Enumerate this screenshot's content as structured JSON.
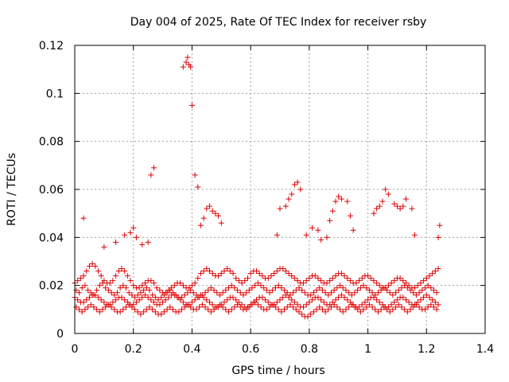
{
  "chart_data": {
    "type": "scatter",
    "title": "Day 004 of 2025, Rate Of TEC Index for receiver rsby",
    "xlabel": "GPS time / hours",
    "ylabel": "ROTI / TECUs",
    "xlim": [
      0,
      1.4
    ],
    "ylim": [
      0,
      0.12
    ],
    "xticks": [
      0,
      0.2,
      0.4,
      0.6,
      0.8,
      1,
      1.2,
      1.4
    ],
    "xtick_labels": [
      "0",
      "0.2",
      "0.4",
      "0.6",
      "0.8",
      "1",
      "1.2",
      "1.4"
    ],
    "yticks": [
      0,
      0.02,
      0.04,
      0.06,
      0.08,
      0.1,
      0.12
    ],
    "ytick_labels": [
      "0",
      "0.02",
      "0.04",
      "0.06",
      "0.08",
      "0.1",
      "0.12"
    ],
    "grid": true,
    "marker": "+",
    "marker_color": "#e00000",
    "series": [
      {
        "name": "ROTI",
        "x": [
          0.0,
          0.01,
          0.02,
          0.03,
          0.04,
          0.05,
          0.06,
          0.07,
          0.08,
          0.09,
          0.1,
          0.11,
          0.12,
          0.13,
          0.14,
          0.15,
          0.16,
          0.17,
          0.18,
          0.19,
          0.2,
          0.21,
          0.22,
          0.23,
          0.24,
          0.25,
          0.26,
          0.27,
          0.28,
          0.29,
          0.3,
          0.31,
          0.32,
          0.33,
          0.34,
          0.35,
          0.36,
          0.37,
          0.38,
          0.39,
          0.4,
          0.41,
          0.42,
          0.43,
          0.44,
          0.45,
          0.46,
          0.47,
          0.48,
          0.49,
          0.5,
          0.51,
          0.52,
          0.53,
          0.54,
          0.55,
          0.56,
          0.57,
          0.58,
          0.59,
          0.6,
          0.61,
          0.62,
          0.63,
          0.64,
          0.65,
          0.66,
          0.67,
          0.68,
          0.69,
          0.7,
          0.71,
          0.72,
          0.73,
          0.74,
          0.75,
          0.76,
          0.77,
          0.78,
          0.79,
          0.8,
          0.81,
          0.82,
          0.83,
          0.84,
          0.85,
          0.86,
          0.87,
          0.88,
          0.89,
          0.9,
          0.91,
          0.92,
          0.93,
          0.94,
          0.95,
          0.96,
          0.97,
          0.98,
          0.99,
          1.0,
          1.01,
          1.02,
          1.03,
          1.04,
          1.05,
          1.06,
          1.07,
          1.08,
          1.09,
          1.1,
          1.11,
          1.12,
          1.13,
          1.14,
          1.15,
          1.16,
          1.17,
          1.18,
          1.19,
          1.2,
          1.21,
          1.22,
          1.23,
          1.24,
          0.0,
          0.01,
          0.02,
          0.03,
          0.04,
          0.05,
          0.06,
          0.07,
          0.08,
          0.09,
          0.1,
          0.11,
          0.12,
          0.13,
          0.14,
          0.15,
          0.16,
          0.17,
          0.18,
          0.19,
          0.2,
          0.21,
          0.22,
          0.23,
          0.24,
          0.25,
          0.26,
          0.27,
          0.28,
          0.29,
          0.3,
          0.31,
          0.32,
          0.33,
          0.34,
          0.35,
          0.36,
          0.37,
          0.38,
          0.39,
          0.4,
          0.41,
          0.42,
          0.43,
          0.44,
          0.45,
          0.46,
          0.47,
          0.48,
          0.49,
          0.5,
          0.51,
          0.52,
          0.53,
          0.54,
          0.55,
          0.56,
          0.57,
          0.58,
          0.59,
          0.6,
          0.61,
          0.62,
          0.63,
          0.64,
          0.65,
          0.66,
          0.67,
          0.68,
          0.69,
          0.7,
          0.71,
          0.72,
          0.73,
          0.74,
          0.75,
          0.76,
          0.77,
          0.78,
          0.79,
          0.8,
          0.81,
          0.82,
          0.83,
          0.84,
          0.85,
          0.86,
          0.87,
          0.88,
          0.89,
          0.9,
          0.91,
          0.92,
          0.93,
          0.94,
          0.95,
          0.96,
          0.97,
          0.98,
          0.99,
          1.0,
          1.01,
          1.02,
          1.03,
          1.04,
          1.05,
          1.06,
          1.07,
          1.08,
          1.09,
          1.1,
          1.11,
          1.12,
          1.13,
          1.14,
          1.15,
          1.16,
          1.17,
          1.18,
          1.19,
          1.2,
          1.21,
          1.22,
          1.23,
          1.24,
          0.005,
          0.015,
          0.025,
          0.035,
          0.045,
          0.055,
          0.065,
          0.075,
          0.085,
          0.095,
          0.105,
          0.115,
          0.125,
          0.135,
          0.145,
          0.155,
          0.165,
          0.175,
          0.185,
          0.195,
          0.205,
          0.215,
          0.225,
          0.235,
          0.245,
          0.255,
          0.265,
          0.275,
          0.285,
          0.295,
          0.305,
          0.315,
          0.325,
          0.335,
          0.345,
          0.355,
          0.365,
          0.375,
          0.385,
          0.395,
          0.405,
          0.415,
          0.425,
          0.435,
          0.445,
          0.455,
          0.465,
          0.475,
          0.485,
          0.495,
          0.505,
          0.515,
          0.525,
          0.535,
          0.545,
          0.555,
          0.565,
          0.575,
          0.585,
          0.595,
          0.605,
          0.615,
          0.625,
          0.635,
          0.645,
          0.655,
          0.665,
          0.675,
          0.685,
          0.695,
          0.705,
          0.715,
          0.725,
          0.735,
          0.745,
          0.755,
          0.765,
          0.775,
          0.785,
          0.795,
          0.805,
          0.815,
          0.825,
          0.835,
          0.845,
          0.855,
          0.865,
          0.875,
          0.885,
          0.895,
          0.905,
          0.915,
          0.925,
          0.935,
          0.945,
          0.955,
          0.965,
          0.975,
          0.985,
          0.995,
          1.005,
          1.015,
          1.025,
          1.035,
          1.045,
          1.055,
          1.065,
          1.075,
          1.085,
          1.095,
          1.105,
          1.115,
          1.125,
          1.135,
          1.145,
          1.155,
          1.165,
          1.175,
          1.185,
          1.195,
          1.205,
          1.215,
          1.225,
          1.235,
          0.005,
          0.015,
          0.025,
          0.035,
          0.045,
          0.055,
          0.065,
          0.075,
          0.085,
          0.095,
          0.105,
          0.115,
          0.125,
          0.135,
          0.145,
          0.155,
          0.165,
          0.175,
          0.185,
          0.195,
          0.205,
          0.215,
          0.225,
          0.235,
          0.245,
          0.255,
          0.265,
          0.275,
          0.285,
          0.295,
          0.305,
          0.315,
          0.325,
          0.335,
          0.345,
          0.355,
          0.365,
          0.375,
          0.385,
          0.395,
          0.405,
          0.415,
          0.425,
          0.435,
          0.445,
          0.455,
          0.465,
          0.475,
          0.485,
          0.495,
          0.505,
          0.515,
          0.525,
          0.535,
          0.545,
          0.555,
          0.565,
          0.575,
          0.585,
          0.595,
          0.605,
          0.615,
          0.625,
          0.635,
          0.645,
          0.655,
          0.665,
          0.675,
          0.685,
          0.695,
          0.705,
          0.715,
          0.725,
          0.735,
          0.745,
          0.755,
          0.765,
          0.775,
          0.785,
          0.795,
          0.805,
          0.815,
          0.825,
          0.835,
          0.845,
          0.855,
          0.865,
          0.875,
          0.885,
          0.895,
          0.905,
          0.915,
          0.925,
          0.935,
          0.945,
          0.955,
          0.965,
          0.975,
          0.985,
          0.995,
          1.005,
          1.015,
          1.025,
          1.035,
          1.045,
          1.055,
          1.065,
          1.075,
          1.085,
          1.095,
          1.105,
          1.115,
          1.125,
          1.135,
          1.145,
          1.155,
          1.165,
          1.175,
          1.185,
          1.195,
          1.205,
          1.215,
          1.225,
          1.235,
          0.03,
          0.1,
          0.14,
          0.17,
          0.19,
          0.2,
          0.21,
          0.23,
          0.25,
          0.26,
          0.27,
          0.37,
          0.38,
          0.385,
          0.39,
          0.395,
          0.4,
          0.41,
          0.42,
          0.43,
          0.44,
          0.45,
          0.46,
          0.47,
          0.48,
          0.49,
          0.5,
          0.69,
          0.7,
          0.72,
          0.73,
          0.74,
          0.75,
          0.76,
          0.77,
          0.79,
          0.81,
          0.83,
          0.84,
          0.86,
          0.87,
          0.88,
          0.89,
          0.9,
          0.91,
          0.93,
          0.94,
          0.95,
          1.02,
          1.03,
          1.04,
          1.05,
          1.06,
          1.07,
          1.09,
          1.1,
          1.11,
          1.12,
          1.13,
          1.15,
          1.16,
          1.24,
          1.245
        ],
        "y": [
          0.021,
          0.022,
          0.023,
          0.024,
          0.026,
          0.028,
          0.029,
          0.028,
          0.026,
          0.024,
          0.022,
          0.021,
          0.021,
          0.022,
          0.024,
          0.026,
          0.027,
          0.026,
          0.024,
          0.022,
          0.02,
          0.019,
          0.019,
          0.02,
          0.021,
          0.022,
          0.022,
          0.021,
          0.019,
          0.018,
          0.017,
          0.017,
          0.018,
          0.019,
          0.02,
          0.021,
          0.021,
          0.02,
          0.019,
          0.019,
          0.02,
          0.021,
          0.023,
          0.025,
          0.026,
          0.027,
          0.026,
          0.025,
          0.024,
          0.024,
          0.025,
          0.026,
          0.027,
          0.026,
          0.025,
          0.023,
          0.022,
          0.021,
          0.022,
          0.023,
          0.025,
          0.026,
          0.026,
          0.025,
          0.024,
          0.023,
          0.023,
          0.024,
          0.025,
          0.026,
          0.027,
          0.027,
          0.026,
          0.025,
          0.024,
          0.023,
          0.022,
          0.021,
          0.021,
          0.022,
          0.023,
          0.024,
          0.024,
          0.023,
          0.022,
          0.021,
          0.021,
          0.022,
          0.023,
          0.024,
          0.025,
          0.025,
          0.024,
          0.023,
          0.022,
          0.021,
          0.021,
          0.022,
          0.023,
          0.024,
          0.024,
          0.023,
          0.022,
          0.021,
          0.02,
          0.019,
          0.019,
          0.02,
          0.021,
          0.022,
          0.023,
          0.023,
          0.022,
          0.021,
          0.02,
          0.019,
          0.019,
          0.02,
          0.021,
          0.022,
          0.023,
          0.024,
          0.025,
          0.026,
          0.027,
          0.015,
          0.014,
          0.013,
          0.013,
          0.014,
          0.015,
          0.016,
          0.016,
          0.015,
          0.014,
          0.013,
          0.012,
          0.012,
          0.013,
          0.014,
          0.015,
          0.015,
          0.014,
          0.013,
          0.012,
          0.012,
          0.013,
          0.014,
          0.015,
          0.016,
          0.015,
          0.014,
          0.013,
          0.012,
          0.012,
          0.013,
          0.014,
          0.015,
          0.016,
          0.016,
          0.015,
          0.014,
          0.013,
          0.012,
          0.012,
          0.013,
          0.014,
          0.015,
          0.016,
          0.015,
          0.014,
          0.013,
          0.012,
          0.011,
          0.011,
          0.012,
          0.013,
          0.014,
          0.015,
          0.015,
          0.014,
          0.013,
          0.012,
          0.011,
          0.011,
          0.012,
          0.013,
          0.014,
          0.015,
          0.015,
          0.014,
          0.013,
          0.012,
          0.012,
          0.013,
          0.014,
          0.015,
          0.016,
          0.015,
          0.014,
          0.013,
          0.012,
          0.011,
          0.011,
          0.012,
          0.013,
          0.014,
          0.015,
          0.015,
          0.014,
          0.013,
          0.012,
          0.012,
          0.013,
          0.014,
          0.015,
          0.016,
          0.015,
          0.014,
          0.013,
          0.012,
          0.011,
          0.011,
          0.012,
          0.013,
          0.014,
          0.015,
          0.015,
          0.014,
          0.013,
          0.012,
          0.011,
          0.011,
          0.012,
          0.013,
          0.014,
          0.015,
          0.015,
          0.014,
          0.013,
          0.012,
          0.012,
          0.013,
          0.014,
          0.015,
          0.016,
          0.015,
          0.014,
          0.013,
          0.012,
          0.018,
          0.017,
          0.019,
          0.02,
          0.018,
          0.017,
          0.016,
          0.018,
          0.02,
          0.021,
          0.019,
          0.018,
          0.017,
          0.016,
          0.017,
          0.019,
          0.02,
          0.019,
          0.017,
          0.016,
          0.015,
          0.016,
          0.017,
          0.018,
          0.019,
          0.018,
          0.016,
          0.015,
          0.014,
          0.015,
          0.016,
          0.017,
          0.018,
          0.017,
          0.016,
          0.015,
          0.015,
          0.016,
          0.017,
          0.018,
          0.017,
          0.016,
          0.015,
          0.016,
          0.017,
          0.018,
          0.019,
          0.018,
          0.017,
          0.016,
          0.017,
          0.018,
          0.019,
          0.02,
          0.019,
          0.018,
          0.017,
          0.016,
          0.017,
          0.018,
          0.019,
          0.02,
          0.021,
          0.02,
          0.019,
          0.018,
          0.017,
          0.018,
          0.019,
          0.02,
          0.019,
          0.018,
          0.017,
          0.016,
          0.017,
          0.018,
          0.019,
          0.018,
          0.017,
          0.016,
          0.016,
          0.017,
          0.018,
          0.019,
          0.018,
          0.017,
          0.016,
          0.017,
          0.018,
          0.019,
          0.02,
          0.019,
          0.018,
          0.017,
          0.016,
          0.017,
          0.018,
          0.019,
          0.02,
          0.019,
          0.018,
          0.017,
          0.016,
          0.017,
          0.018,
          0.019,
          0.018,
          0.017,
          0.016,
          0.017,
          0.018,
          0.019,
          0.02,
          0.019,
          0.018,
          0.017,
          0.016,
          0.017,
          0.018,
          0.019,
          0.02,
          0.019,
          0.018,
          0.017,
          0.011,
          0.01,
          0.009,
          0.01,
          0.011,
          0.012,
          0.011,
          0.01,
          0.009,
          0.01,
          0.011,
          0.012,
          0.011,
          0.01,
          0.009,
          0.009,
          0.01,
          0.011,
          0.012,
          0.011,
          0.01,
          0.009,
          0.008,
          0.009,
          0.01,
          0.011,
          0.01,
          0.009,
          0.008,
          0.008,
          0.009,
          0.01,
          0.011,
          0.01,
          0.009,
          0.009,
          0.01,
          0.011,
          0.012,
          0.011,
          0.01,
          0.01,
          0.011,
          0.012,
          0.011,
          0.01,
          0.009,
          0.01,
          0.011,
          0.012,
          0.011,
          0.01,
          0.009,
          0.01,
          0.011,
          0.012,
          0.011,
          0.01,
          0.01,
          0.011,
          0.012,
          0.013,
          0.012,
          0.011,
          0.01,
          0.01,
          0.011,
          0.012,
          0.011,
          0.01,
          0.009,
          0.01,
          0.011,
          0.012,
          0.011,
          0.01,
          0.009,
          0.008,
          0.007,
          0.007,
          0.008,
          0.009,
          0.01,
          0.011,
          0.01,
          0.009,
          0.01,
          0.011,
          0.012,
          0.011,
          0.01,
          0.009,
          0.01,
          0.011,
          0.012,
          0.011,
          0.01,
          0.009,
          0.01,
          0.011,
          0.012,
          0.011,
          0.01,
          0.009,
          0.01,
          0.011,
          0.01,
          0.009,
          0.01,
          0.011,
          0.012,
          0.011,
          0.01,
          0.009,
          0.01,
          0.011,
          0.012,
          0.011,
          0.01,
          0.01,
          0.011,
          0.012,
          0.011,
          0.01,
          0.048,
          0.036,
          0.038,
          0.041,
          0.042,
          0.044,
          0.04,
          0.037,
          0.038,
          0.066,
          0.069,
          0.111,
          0.113,
          0.115,
          0.112,
          0.111,
          0.095,
          0.066,
          0.061,
          0.045,
          0.048,
          0.052,
          0.053,
          0.051,
          0.05,
          0.049,
          0.046,
          0.041,
          0.052,
          0.053,
          0.056,
          0.058,
          0.062,
          0.063,
          0.06,
          0.041,
          0.044,
          0.043,
          0.039,
          0.04,
          0.047,
          0.051,
          0.055,
          0.057,
          0.056,
          0.055,
          0.049,
          0.043,
          0.05,
          0.052,
          0.053,
          0.055,
          0.06,
          0.058,
          0.054,
          0.053,
          0.052,
          0.053,
          0.056,
          0.052,
          0.041,
          0.04,
          0.045
        ]
      }
    ]
  }
}
